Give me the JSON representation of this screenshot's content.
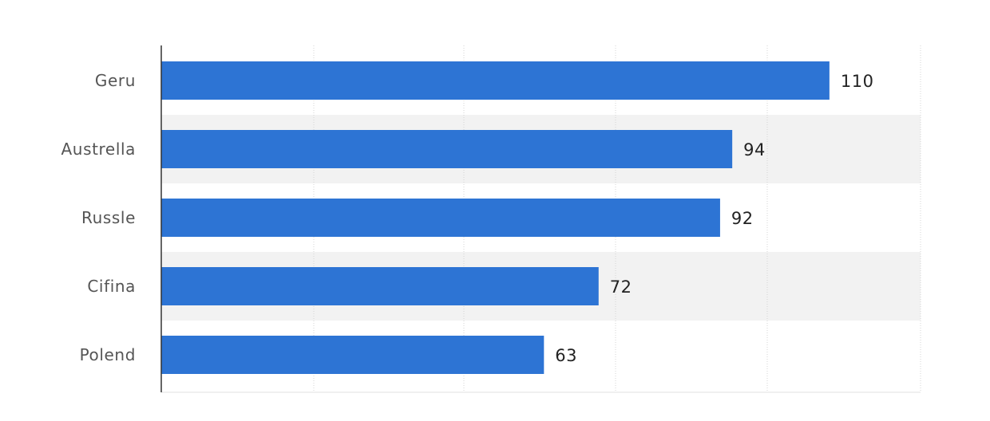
{
  "chart_data": {
    "type": "bar",
    "orientation": "horizontal",
    "categories": [
      "Geru",
      "Austrella",
      "Russle",
      "Cifina",
      "Polend"
    ],
    "values": [
      110,
      94,
      92,
      72,
      63
    ],
    "title": "",
    "xlabel": "",
    "ylabel": "",
    "xlim": [
      0,
      125
    ],
    "grid": true,
    "data_labels": true,
    "bar_color": "#2d74d4",
    "alternate_row_shading": "#f2f2f2"
  }
}
